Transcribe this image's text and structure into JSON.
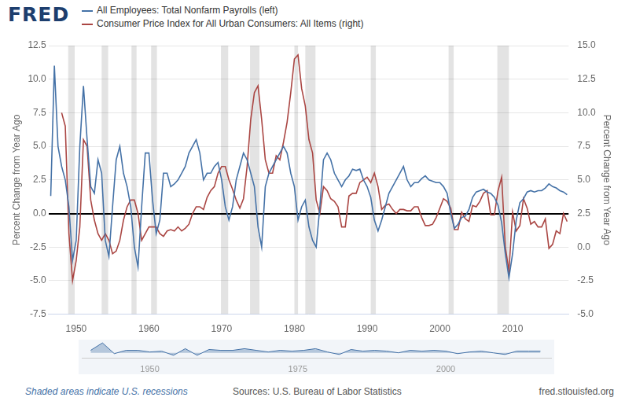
{
  "chart_data": [
    {
      "type": "line",
      "title": "FRED",
      "y_label": "Percent Change from Year Ago",
      "y2_label": "Percent Change from Year Ago",
      "note": "Shaded areas indicate U.S. recessions",
      "source": "Sources: U.S. Bureau of Labor Statistics",
      "credit": "fred.stlouisfed.org",
      "legend": "top",
      "grid": true,
      "xlim": [
        1946.2,
        2017.7
      ],
      "xticks": [
        1950,
        1960,
        1970,
        1980,
        1990,
        2000,
        2010
      ],
      "ylim": [
        -7.5,
        12.5
      ],
      "yticks": [
        -7.5,
        {
          "value": -5,
          "label": "-5.0"
        },
        -2.5,
        {
          "value": 0,
          "label": "0.0"
        },
        2.5,
        {
          "value": 5,
          "label": "5.0"
        },
        7.5,
        {
          "value": 10,
          "label": "10.0"
        },
        12.5
      ],
      "y2lim": [
        -5,
        15
      ],
      "y2ticks": [
        {
          "value": -5,
          "label": "-5.0"
        },
        -2.5,
        {
          "value": 0,
          "label": "0.0"
        },
        2.5,
        {
          "value": 5,
          "label": "5.0"
        },
        7.5,
        {
          "value": 10,
          "label": "10.0"
        },
        12.5,
        {
          "value": 15,
          "label": "15.0"
        }
      ],
      "recessions": [
        [
          1948.9,
          1949.8
        ],
        [
          1953.5,
          1954.4
        ],
        [
          1957.6,
          1958.3
        ],
        [
          1960.3,
          1961.1
        ],
        [
          1969.9,
          1970.9
        ],
        [
          1973.9,
          1975.2
        ],
        [
          1980.0,
          1980.5
        ],
        [
          1981.5,
          1982.9
        ],
        [
          1990.5,
          1991.2
        ],
        [
          2001.2,
          2001.9
        ],
        [
          2007.9,
          2009.5
        ]
      ],
      "x": [
        1946.5,
        1947,
        1947.5,
        1948,
        1948.5,
        1949,
        1949.5,
        1950,
        1950.5,
        1951,
        1951.5,
        1952,
        1952.5,
        1953,
        1953.5,
        1954,
        1954.5,
        1955,
        1955.5,
        1956,
        1956.5,
        1957,
        1957.5,
        1958,
        1958.5,
        1959,
        1959.5,
        1960,
        1960.5,
        1961,
        1961.5,
        1962,
        1962.5,
        1963,
        1963.5,
        1964,
        1964.5,
        1965,
        1965.5,
        1966,
        1966.5,
        1967,
        1967.5,
        1968,
        1968.5,
        1969,
        1969.5,
        1970,
        1970.5,
        1971,
        1971.5,
        1972,
        1972.5,
        1973,
        1973.5,
        1974,
        1974.5,
        1975,
        1975.5,
        1976,
        1976.5,
        1977,
        1977.5,
        1978,
        1978.5,
        1979,
        1979.5,
        1980,
        1980.5,
        1981,
        1981.5,
        1982,
        1982.5,
        1983,
        1983.5,
        1984,
        1984.5,
        1985,
        1985.5,
        1986,
        1986.5,
        1987,
        1987.5,
        1988,
        1988.5,
        1989,
        1989.5,
        1990,
        1990.5,
        1991,
        1991.5,
        1992,
        1992.5,
        1993,
        1993.5,
        1994,
        1994.5,
        1995,
        1995.5,
        1996,
        1996.5,
        1997,
        1997.5,
        1998,
        1998.5,
        1999,
        1999.5,
        2000,
        2000.5,
        2001,
        2001.5,
        2002,
        2002.5,
        2003,
        2003.5,
        2004,
        2004.5,
        2005,
        2005.5,
        2006,
        2006.5,
        2007,
        2007.5,
        2008,
        2008.5,
        2009,
        2009.5,
        2010,
        2010.5,
        2011,
        2011.5,
        2012,
        2012.5,
        2013,
        2013.5,
        2014,
        2014.5,
        2015,
        2015.5,
        2016,
        2016.5,
        2017,
        2017.5
      ],
      "series": [
        {
          "name": "All Employees: Total Nonfarm Payrolls (left)",
          "color": "#4572a7",
          "axis": "y",
          "values": [
            1.3,
            11.0,
            5.0,
            3.5,
            2.5,
            0.5,
            -3.5,
            -2.0,
            5.0,
            9.5,
            5.5,
            2.0,
            1.5,
            4.0,
            3.0,
            -2.0,
            -3.2,
            0.5,
            4.0,
            5.0,
            3.0,
            2.0,
            0.5,
            -2.5,
            -4.0,
            0.5,
            4.5,
            4.5,
            1.0,
            -1.5,
            -0.5,
            3.0,
            3.0,
            2.0,
            2.2,
            2.5,
            3.0,
            3.5,
            4.5,
            5.0,
            5.5,
            4.5,
            2.5,
            3.0,
            3.0,
            3.5,
            3.8,
            2.5,
            0.5,
            -0.5,
            0.5,
            2.5,
            3.5,
            4.5,
            4.0,
            3.0,
            2.0,
            -1.0,
            -2.5,
            2.0,
            3.0,
            3.5,
            4.0,
            4.5,
            5.0,
            4.5,
            3.0,
            2.0,
            -0.5,
            0.5,
            1.0,
            -1.0,
            -2.0,
            -2.5,
            0.5,
            4.0,
            4.5,
            4.0,
            3.0,
            2.5,
            2.0,
            2.5,
            2.8,
            3.3,
            3.2,
            3.3,
            2.5,
            2.0,
            1.2,
            -0.5,
            -1.3,
            -0.5,
            0.5,
            1.5,
            2.0,
            2.5,
            3.0,
            3.5,
            2.5,
            2.0,
            2.3,
            2.3,
            2.6,
            2.8,
            2.5,
            2.4,
            2.3,
            2.3,
            2.0,
            1.5,
            0.0,
            -1.1,
            -0.8,
            -0.3,
            -0.2,
            0.3,
            1.2,
            1.6,
            1.7,
            1.8,
            1.6,
            1.5,
            1.2,
            0.6,
            -0.7,
            -3.0,
            -4.8,
            -3.0,
            -0.5,
            0.8,
            1.1,
            1.6,
            1.7,
            1.6,
            1.7,
            1.7,
            1.9,
            2.2,
            2.0,
            1.9,
            1.7,
            1.6,
            1.4
          ]
        },
        {
          "name": "Consumer Price Index for All Urban Consumers: All Items (right)",
          "color": "#aa4643",
          "axis": "y2",
          "values": [
            null,
            null,
            null,
            10.0,
            9.0,
            1.0,
            -2.5,
            -1.0,
            1.5,
            8.0,
            7.5,
            3.5,
            2.0,
            1.0,
            0.5,
            1.0,
            0.5,
            -0.5,
            -0.3,
            0.5,
            2.0,
            3.0,
            3.5,
            3.5,
            2.5,
            0.5,
            1.0,
            1.5,
            1.5,
            1.5,
            1.0,
            0.8,
            1.2,
            1.3,
            1.2,
            1.5,
            1.2,
            1.4,
            1.7,
            2.5,
            3.0,
            3.0,
            2.8,
            3.7,
            4.2,
            4.5,
            5.5,
            6.0,
            6.0,
            5.0,
            4.3,
            3.5,
            2.9,
            3.6,
            6.0,
            9.5,
            11.5,
            12.0,
            9.5,
            6.5,
            5.5,
            5.5,
            6.8,
            6.5,
            7.8,
            9.3,
            11.5,
            14.0,
            14.3,
            11.8,
            10.5,
            8.0,
            7.0,
            3.5,
            2.5,
            4.5,
            4.2,
            3.6,
            3.4,
            3.0,
            1.5,
            1.5,
            3.8,
            4.0,
            4.0,
            4.8,
            5.0,
            5.2,
            4.8,
            5.5,
            4.5,
            2.8,
            3.1,
            3.2,
            2.8,
            2.5,
            2.8,
            2.8,
            2.7,
            2.7,
            3.0,
            3.0,
            2.2,
            1.6,
            1.6,
            1.7,
            2.2,
            2.9,
            3.6,
            3.4,
            2.9,
            1.3,
            1.3,
            2.6,
            2.1,
            1.9,
            3.1,
            3.0,
            3.4,
            4.0,
            4.2,
            2.4,
            2.4,
            4.2,
            5.2,
            0.0,
            -1.8,
            2.6,
            1.2,
            1.6,
            3.6,
            2.9,
            1.7,
            1.9,
            1.5,
            1.5,
            2.1,
            -0.1,
            0.2,
            1.2,
            1.0,
            2.5,
            1.9
          ]
        }
      ]
    },
    {
      "type": "area",
      "tick_labels": "x",
      "xlim": [
        1938.5,
        2017.8
      ],
      "xticks": [
        1950,
        1975,
        2000
      ],
      "ylim": [
        -6,
        14
      ],
      "x": [
        1940,
        1942,
        1944,
        1946,
        1948,
        1950,
        1952,
        1954,
        1956,
        1958,
        1960,
        1962,
        1964,
        1966,
        1968,
        1970,
        1972,
        1974,
        1976,
        1978,
        1980,
        1982,
        1984,
        1986,
        1988,
        1990,
        1992,
        1994,
        1996,
        1998,
        2000,
        2002,
        2004,
        2006,
        2008,
        2010,
        2012,
        2014,
        2016
      ],
      "series": [
        {
          "name": "All Employees: Total Nonfarm Payrolls",
          "color": "#4572a7",
          "values": [
            3,
            12,
            -1,
            3,
            3,
            1,
            2,
            -3,
            5,
            -3,
            4,
            3,
            3,
            5,
            3,
            1,
            3,
            2,
            3,
            5,
            1,
            -2,
            4,
            2,
            3,
            2,
            0,
            3,
            2,
            3,
            2,
            -1,
            1,
            2,
            0,
            -2,
            2,
            2,
            2
          ]
        }
      ]
    }
  ]
}
